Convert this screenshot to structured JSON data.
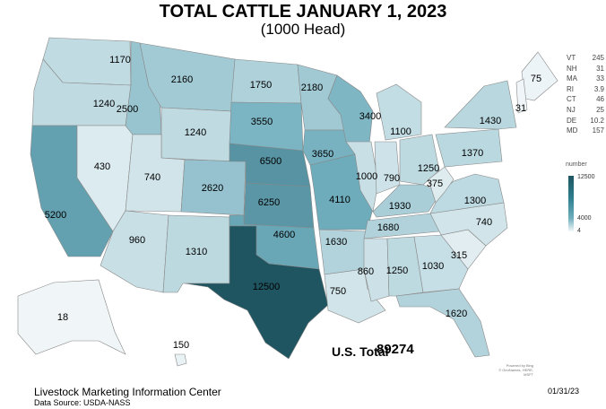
{
  "title": "TOTAL CATTLE JANUARY 1, 2023",
  "subtitle": "(1000 Head)",
  "states": [
    {
      "state": "WA",
      "value": 1170
    },
    {
      "state": "OR",
      "value": 1240
    },
    {
      "state": "CA",
      "value": 5200
    },
    {
      "state": "NV",
      "value": 430
    },
    {
      "state": "ID",
      "value": 2500
    },
    {
      "state": "MT",
      "value": 2160
    },
    {
      "state": "WY",
      "value": 1240
    },
    {
      "state": "UT",
      "value": 740
    },
    {
      "state": "CO",
      "value": 2620
    },
    {
      "state": "AZ",
      "value": 960
    },
    {
      "state": "NM",
      "value": 1310
    },
    {
      "state": "ND",
      "value": 1750
    },
    {
      "state": "SD",
      "value": 3550
    },
    {
      "state": "NE",
      "value": 6500
    },
    {
      "state": "KS",
      "value": 6250
    },
    {
      "state": "OK",
      "value": 4600
    },
    {
      "state": "TX",
      "value": 12500
    },
    {
      "state": "MN",
      "value": 2180
    },
    {
      "state": "IA",
      "value": 3650
    },
    {
      "state": "MO",
      "value": 4110
    },
    {
      "state": "AR",
      "value": 1630
    },
    {
      "state": "LA",
      "value": 750
    },
    {
      "state": "WI",
      "value": 3400
    },
    {
      "state": "IL",
      "value": 1000
    },
    {
      "state": "MI",
      "value": 1100
    },
    {
      "state": "IN",
      "value": 790
    },
    {
      "state": "OH",
      "value": 1250
    },
    {
      "state": "KY",
      "value": 1930
    },
    {
      "state": "TN",
      "value": 1680
    },
    {
      "state": "MS",
      "value": 860
    },
    {
      "state": "AL",
      "value": 1250
    },
    {
      "state": "GA",
      "value": 1030
    },
    {
      "state": "FL",
      "value": 1620
    },
    {
      "state": "SC",
      "value": 315
    },
    {
      "state": "NC",
      "value": 740
    },
    {
      "state": "VA",
      "value": 1300
    },
    {
      "state": "WV",
      "value": 375
    },
    {
      "state": "PA",
      "value": 1370
    },
    {
      "state": "NY",
      "value": 1430
    },
    {
      "state": "ME",
      "value": 75
    },
    {
      "state": "NH",
      "value": 31
    },
    {
      "state": "AK",
      "value": 18
    },
    {
      "state": "HI",
      "value": 150
    }
  ],
  "small_states": [
    {
      "state": "VT",
      "value": "245"
    },
    {
      "state": "NH",
      "value": "31"
    },
    {
      "state": "MA",
      "value": "33"
    },
    {
      "state": "RI",
      "value": "3.9"
    },
    {
      "state": "CT",
      "value": "46"
    },
    {
      "state": "NJ",
      "value": "25"
    },
    {
      "state": "DE",
      "value": "10.2"
    },
    {
      "state": "MD",
      "value": "157"
    }
  ],
  "legend": {
    "title": "number",
    "max": "12500",
    "mid": "4000",
    "min": "4",
    "colors": [
      "#f2f7f9",
      "#6fadbd",
      "#1f5561"
    ]
  },
  "total": {
    "label": "U.S. Total",
    "value": "89274"
  },
  "attribution": [
    "Powered by Bing",
    "© GeoNames, HERE, MSFT"
  ],
  "footer": {
    "org": "Livestock Marketing Information Center",
    "source": "Data Source: USDA-NASS",
    "date": "01/31/23"
  }
}
